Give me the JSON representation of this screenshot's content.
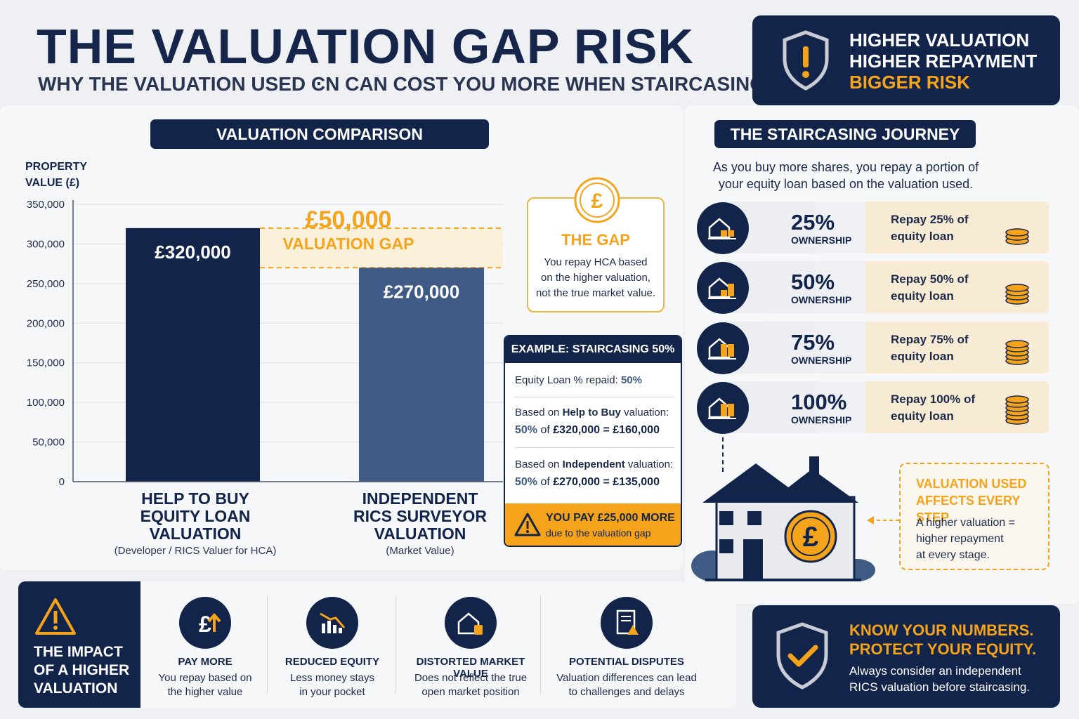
{
  "header": {
    "title": "THE VALUATION GAP RISK",
    "subtitle": "WHY THE VALUATION USED ϾN CAN COST YOU MORE WHEN STAIRCASING"
  },
  "risk_box": {
    "line1": "HIGHER VALUATION",
    "line2": "HIGHER REPAYMENT",
    "line3": "BIGGER RISK",
    "icon": "shield-warning-icon"
  },
  "comparison": {
    "heading": "VALUATION COMPARISON",
    "y_axis_title_line1": "PROPERTY",
    "y_axis_title_line2": "VALUE (£)"
  },
  "chart_data": {
    "type": "bar",
    "categories": [
      "HELP TO BUY EQUITY LOAN VALUATION",
      "INDEPENDENT RICS SURVEYOR VALUATION"
    ],
    "category_lines": [
      [
        "HELP TO BUY",
        "EQUITY LOAN",
        "VALUATION"
      ],
      [
        "INDEPENDENT",
        "RICS SURVEYOR",
        "VALUATION"
      ]
    ],
    "category_subtitles": [
      "(Developer / RICS Valuer for HCA)",
      "(Market Value)"
    ],
    "values": [
      320000,
      270000
    ],
    "data_labels": [
      "£320,000",
      "£270,000"
    ],
    "bar_colors": [
      "#13244a",
      "#3f5b85"
    ],
    "ylim": [
      0,
      350000
    ],
    "yticks": [
      0,
      50000,
      100000,
      150000,
      200000,
      250000,
      300000,
      350000
    ],
    "ytick_labels": [
      "0",
      "50,000",
      "100,000",
      "150,000",
      "200,000",
      "250,000",
      "300,000",
      "350,000"
    ],
    "grid": true,
    "annotation": {
      "value_text": "£50,000",
      "label_text": "VALUATION GAP",
      "from": 270000,
      "to": 320000
    }
  },
  "gap_card": {
    "icon": "pound-coin-icon",
    "title": "THE GAP",
    "line1": "You repay HCA based",
    "line2": "on the higher valuation,",
    "line3": "not the true market value."
  },
  "example": {
    "heading": "EXAMPLE: STAIRCASING 50%",
    "repaid_label": "Equity Loan % repaid: ",
    "repaid_value": "50%",
    "htb_label_pre": "Based on ",
    "htb_label_bold": "Help to Buy",
    "htb_label_post": " valuation:",
    "htb_calc_a": "50%",
    "htb_calc_b": " of ",
    "htb_calc_c": "£320,000 = £160,000",
    "ind_label_pre": "Based on ",
    "ind_label_bold": "Independent",
    "ind_label_post": " valuation:",
    "ind_calc_a": "50%",
    "ind_calc_b": " of ",
    "ind_calc_c": "£270,000 = £135,000",
    "warning_line1": "YOU PAY £25,000 MORE",
    "warning_line2": "due to the valuation gap",
    "warning_icon": "warning-triangle-icon"
  },
  "journey": {
    "heading": "THE STAIRCASING JOURNEY",
    "intro_line1": "As you buy more shares, you repay a portion of",
    "intro_line2": "your equity loan based on the valuation used.",
    "steps": [
      {
        "pct": "25%",
        "own": "OWNERSHIP",
        "repay1": "Repay 25% of",
        "repay2": "equity loan",
        "coins": 3
      },
      {
        "pct": "50%",
        "own": "OWNERSHIP",
        "repay1": "Repay 50% of",
        "repay2": "equity loan",
        "coins": 4
      },
      {
        "pct": "75%",
        "own": "OWNERSHIP",
        "repay1": "Repay 75% of",
        "repay2": "equity loan",
        "coins": 5
      },
      {
        "pct": "100%",
        "own": "OWNERSHIP",
        "repay1": "Repay 100% of",
        "repay2": "equity loan",
        "coins": 6
      }
    ],
    "callout_title1": "VALUATION USED",
    "callout_title2": "AFFECTS EVERY STEP",
    "callout_line1": "A higher valuation =",
    "callout_line2": "higher repayment",
    "callout_line3": "at every stage.",
    "house_icon": "house-pound-icon"
  },
  "impact": {
    "title_line1": "THE IMPACT",
    "title_line2": "OF A HIGHER",
    "title_line3": "VALUATION",
    "items": [
      {
        "title": "PAY MORE",
        "line1": "You repay based on",
        "line2": "the higher value",
        "icon": "pound-up-arrow-icon"
      },
      {
        "title": "REDUCED EQUITY",
        "line1": "Less money stays",
        "line2": "in your pocket",
        "icon": "falling-chart-icon"
      },
      {
        "title": "DISTORTED MARKET VALUE",
        "line1": "Does not reflect the true",
        "line2": "open market position",
        "icon": "house-tag-icon"
      },
      {
        "title": "POTENTIAL DISPUTES",
        "line1": "Valuation differences can lead",
        "line2": "to challenges and delays",
        "icon": "document-warning-icon"
      }
    ]
  },
  "footer_box": {
    "line1": "KNOW YOUR NUMBERS.",
    "line2": "PROTECT YOUR EQUITY.",
    "line3": "Always consider an independent",
    "line4": "RICS valuation before staircasing.",
    "icon": "shield-check-icon"
  },
  "colors": {
    "navy": "#13244a",
    "slate": "#3f5b85",
    "orange": "#f5a31a",
    "tan": "#f8ebd3"
  }
}
